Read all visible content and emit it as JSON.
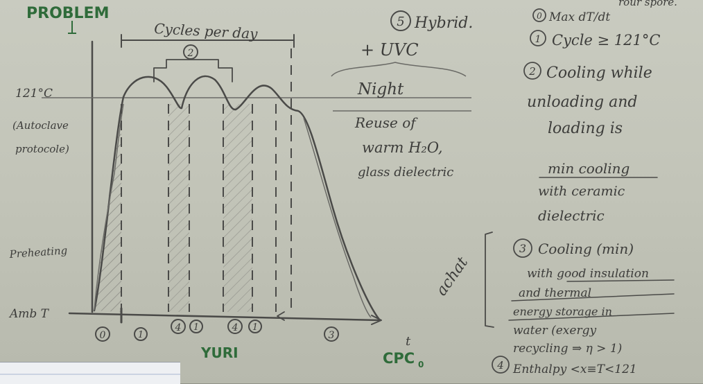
{
  "diagram": {
    "title": "PROBLEM",
    "axis": {
      "y_top_label": "121°C",
      "y_top_note_line1": "(Autoclave",
      "y_top_note_line2": "protocole)",
      "preheating_label": "Preheating",
      "ambient_label": "Amb T",
      "x_label": "t",
      "cycles_label": "Cycles per day"
    },
    "curve_phase_labels": [
      "0",
      "1",
      "4",
      "1",
      "4",
      "1",
      "3"
    ],
    "marker_2": "2",
    "names": {
      "left": "YURI",
      "right": "CPC"
    },
    "names_subscript": "0",
    "achat_label": "achat",
    "middle_notes": {
      "hybrid_num": "5",
      "hybrid": "Hybrid.",
      "uvc": "+ UVC",
      "night": "Night",
      "reuse_line1": "Reuse of",
      "reuse_line2": "warm H₂O,",
      "reuse_line3": "glass dielectric"
    },
    "right_notes": {
      "top_fragment": "rour spore.",
      "items": [
        {
          "num": "0",
          "lines": [
            "Max dT/dt"
          ]
        },
        {
          "num": "1",
          "lines": [
            "Cycle ≥ 121°C"
          ]
        },
        {
          "num": "2",
          "lines": [
            "Cooling while",
            "unloading and",
            "loading is"
          ]
        },
        {
          "num": "",
          "lines": [
            "min cooling",
            "with ceramic",
            "dielectric"
          ]
        },
        {
          "num": "3",
          "lines": [
            "Cooling (min)",
            "with good insulation",
            "and thermal",
            "energy storage in",
            "water (exergy",
            "recycling ⇒ η > 1)"
          ]
        },
        {
          "num": "4",
          "lines": [
            "Enthalpy <x≡T<121"
          ]
        }
      ]
    }
  }
}
